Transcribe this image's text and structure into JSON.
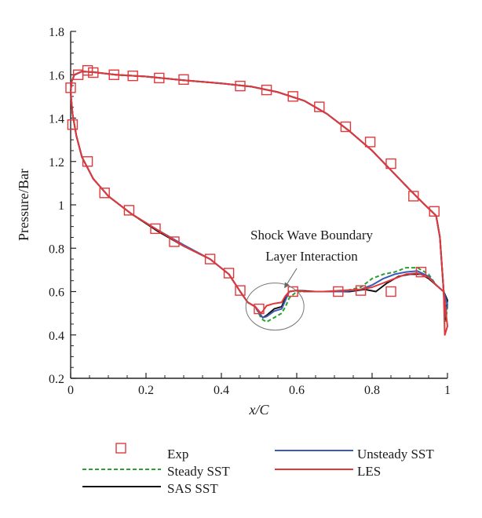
{
  "chart_data": {
    "type": "line",
    "title": "",
    "xlabel": "x/C",
    "ylabel": "Pressure/Bar",
    "xlim": [
      0,
      1
    ],
    "ylim": [
      0.2,
      1.8
    ],
    "xticks": [
      0,
      0.2,
      0.4,
      0.6,
      0.8,
      1
    ],
    "xtick_labels": [
      "0",
      "0.2",
      "0.4",
      "0.6",
      "0.8",
      "1"
    ],
    "yticks": [
      0.2,
      0.4,
      0.6,
      0.8,
      1.0,
      1.2,
      1.4,
      1.6,
      1.8
    ],
    "ytick_labels": [
      "0.2",
      "0.4",
      "0.6",
      "0.8",
      "1",
      "1.2",
      "1.4",
      "1.6",
      "1.8"
    ],
    "grid": false,
    "legend_position": "bottom",
    "annotation": {
      "line1": "Shock Wave Boundary",
      "line2": "Layer Interaction",
      "target": [
        0.54,
        0.52
      ]
    },
    "exp": {
      "name": "Exp",
      "color": "#e0383b",
      "marker": "square",
      "upper": [
        [
          0.0,
          1.54
        ],
        [
          0.02,
          1.6
        ],
        [
          0.045,
          1.62
        ],
        [
          0.06,
          1.61
        ],
        [
          0.115,
          1.6
        ],
        [
          0.165,
          1.595
        ],
        [
          0.235,
          1.585
        ],
        [
          0.3,
          1.578
        ],
        [
          0.45,
          1.548
        ],
        [
          0.52,
          1.53
        ],
        [
          0.59,
          1.5
        ],
        [
          0.66,
          1.452
        ],
        [
          0.73,
          1.36
        ],
        [
          0.795,
          1.29
        ],
        [
          0.85,
          1.19
        ],
        [
          0.91,
          1.04
        ],
        [
          0.965,
          0.97
        ]
      ],
      "lower": [
        [
          0.005,
          1.37
        ],
        [
          0.045,
          1.2
        ],
        [
          0.09,
          1.055
        ],
        [
          0.155,
          0.975
        ],
        [
          0.225,
          0.89
        ],
        [
          0.275,
          0.83
        ],
        [
          0.37,
          0.75
        ],
        [
          0.42,
          0.685
        ],
        [
          0.45,
          0.605
        ],
        [
          0.5,
          0.52
        ],
        [
          0.59,
          0.6
        ],
        [
          0.71,
          0.6
        ],
        [
          0.77,
          0.605
        ],
        [
          0.85,
          0.6
        ],
        [
          0.93,
          0.69
        ]
      ]
    },
    "series": [
      {
        "name": "Steady SST",
        "color": "#2ca02c",
        "dash": "5,3",
        "points": [
          [
            0.0,
            1.52
          ],
          [
            0.003,
            1.57
          ],
          [
            0.01,
            1.6
          ],
          [
            0.03,
            1.615
          ],
          [
            0.06,
            1.612
          ],
          [
            0.12,
            1.6
          ],
          [
            0.2,
            1.592
          ],
          [
            0.3,
            1.575
          ],
          [
            0.4,
            1.56
          ],
          [
            0.48,
            1.545
          ],
          [
            0.55,
            1.52
          ],
          [
            0.62,
            1.48
          ],
          [
            0.68,
            1.42
          ],
          [
            0.74,
            1.34
          ],
          [
            0.8,
            1.25
          ],
          [
            0.85,
            1.16
          ],
          [
            0.9,
            1.07
          ],
          [
            0.94,
            1.0
          ],
          [
            0.97,
            0.95
          ],
          [
            0.98,
            0.85
          ],
          [
            0.99,
            0.6
          ],
          [
            0.995,
            0.46
          ],
          [
            1.0,
            0.53
          ],
          [
            0.99,
            0.6
          ],
          [
            0.97,
            0.63
          ],
          [
            0.95,
            0.68
          ],
          [
            0.92,
            0.71
          ],
          [
            0.89,
            0.71
          ],
          [
            0.86,
            0.69
          ],
          [
            0.83,
            0.68
          ],
          [
            0.8,
            0.66
          ],
          [
            0.77,
            0.62
          ],
          [
            0.72,
            0.6
          ],
          [
            0.67,
            0.6
          ],
          [
            0.62,
            0.6
          ],
          [
            0.6,
            0.6
          ],
          [
            0.58,
            0.57
          ],
          [
            0.57,
            0.53
          ],
          [
            0.56,
            0.5
          ],
          [
            0.54,
            0.48
          ],
          [
            0.52,
            0.46
          ],
          [
            0.51,
            0.47
          ],
          [
            0.505,
            0.48
          ],
          [
            0.49,
            0.53
          ],
          [
            0.47,
            0.55
          ],
          [
            0.45,
            0.6
          ],
          [
            0.42,
            0.68
          ],
          [
            0.37,
            0.75
          ],
          [
            0.3,
            0.81
          ],
          [
            0.23,
            0.88
          ],
          [
            0.16,
            0.96
          ],
          [
            0.1,
            1.04
          ],
          [
            0.06,
            1.12
          ],
          [
            0.03,
            1.22
          ],
          [
            0.015,
            1.32
          ],
          [
            0.005,
            1.42
          ],
          [
            0.0,
            1.52
          ]
        ]
      },
      {
        "name": "SAS SST",
        "color": "#111111",
        "dash": "",
        "points": [
          [
            0.0,
            1.52
          ],
          [
            0.003,
            1.57
          ],
          [
            0.01,
            1.6
          ],
          [
            0.03,
            1.615
          ],
          [
            0.06,
            1.612
          ],
          [
            0.12,
            1.6
          ],
          [
            0.2,
            1.592
          ],
          [
            0.3,
            1.575
          ],
          [
            0.4,
            1.56
          ],
          [
            0.48,
            1.545
          ],
          [
            0.55,
            1.52
          ],
          [
            0.62,
            1.48
          ],
          [
            0.68,
            1.42
          ],
          [
            0.74,
            1.34
          ],
          [
            0.8,
            1.25
          ],
          [
            0.85,
            1.16
          ],
          [
            0.9,
            1.07
          ],
          [
            0.94,
            1.0
          ],
          [
            0.97,
            0.95
          ],
          [
            0.98,
            0.85
          ],
          [
            0.99,
            0.6
          ],
          [
            0.993,
            0.47
          ],
          [
            1.0,
            0.56
          ],
          [
            0.99,
            0.6
          ],
          [
            0.97,
            0.63
          ],
          [
            0.95,
            0.66
          ],
          [
            0.93,
            0.68
          ],
          [
            0.9,
            0.68
          ],
          [
            0.87,
            0.67
          ],
          [
            0.84,
            0.64
          ],
          [
            0.81,
            0.6
          ],
          [
            0.78,
            0.61
          ],
          [
            0.74,
            0.6
          ],
          [
            0.7,
            0.6
          ],
          [
            0.65,
            0.6
          ],
          [
            0.6,
            0.605
          ],
          [
            0.58,
            0.6
          ],
          [
            0.57,
            0.57
          ],
          [
            0.56,
            0.53
          ],
          [
            0.54,
            0.52
          ],
          [
            0.52,
            0.49
          ],
          [
            0.51,
            0.48
          ],
          [
            0.505,
            0.49
          ],
          [
            0.49,
            0.53
          ],
          [
            0.47,
            0.55
          ],
          [
            0.45,
            0.6
          ],
          [
            0.42,
            0.68
          ],
          [
            0.37,
            0.75
          ],
          [
            0.3,
            0.81
          ],
          [
            0.23,
            0.88
          ],
          [
            0.16,
            0.96
          ],
          [
            0.1,
            1.04
          ],
          [
            0.06,
            1.12
          ],
          [
            0.03,
            1.22
          ],
          [
            0.015,
            1.32
          ],
          [
            0.005,
            1.42
          ],
          [
            0.0,
            1.52
          ]
        ]
      },
      {
        "name": "Unsteady SST",
        "color": "#3b5bb8",
        "dash": "",
        "points": [
          [
            0.0,
            1.52
          ],
          [
            0.003,
            1.57
          ],
          [
            0.01,
            1.6
          ],
          [
            0.03,
            1.615
          ],
          [
            0.06,
            1.612
          ],
          [
            0.12,
            1.6
          ],
          [
            0.2,
            1.592
          ],
          [
            0.3,
            1.575
          ],
          [
            0.4,
            1.56
          ],
          [
            0.48,
            1.545
          ],
          [
            0.55,
            1.52
          ],
          [
            0.62,
            1.48
          ],
          [
            0.68,
            1.42
          ],
          [
            0.74,
            1.34
          ],
          [
            0.8,
            1.25
          ],
          [
            0.85,
            1.16
          ],
          [
            0.9,
            1.07
          ],
          [
            0.94,
            1.0
          ],
          [
            0.97,
            0.95
          ],
          [
            0.98,
            0.85
          ],
          [
            0.99,
            0.6
          ],
          [
            0.993,
            0.48
          ],
          [
            1.0,
            0.54
          ],
          [
            0.99,
            0.6
          ],
          [
            0.97,
            0.63
          ],
          [
            0.95,
            0.67
          ],
          [
            0.92,
            0.695
          ],
          [
            0.89,
            0.69
          ],
          [
            0.86,
            0.68
          ],
          [
            0.83,
            0.66
          ],
          [
            0.8,
            0.63
          ],
          [
            0.77,
            0.61
          ],
          [
            0.72,
            0.6
          ],
          [
            0.67,
            0.6
          ],
          [
            0.62,
            0.6
          ],
          [
            0.6,
            0.605
          ],
          [
            0.58,
            0.6
          ],
          [
            0.57,
            0.56
          ],
          [
            0.56,
            0.52
          ],
          [
            0.54,
            0.51
          ],
          [
            0.52,
            0.485
          ],
          [
            0.51,
            0.48
          ],
          [
            0.505,
            0.49
          ],
          [
            0.49,
            0.53
          ],
          [
            0.47,
            0.55
          ],
          [
            0.45,
            0.6
          ],
          [
            0.42,
            0.68
          ],
          [
            0.37,
            0.75
          ],
          [
            0.3,
            0.815
          ],
          [
            0.23,
            0.885
          ],
          [
            0.16,
            0.96
          ],
          [
            0.1,
            1.04
          ],
          [
            0.06,
            1.12
          ],
          [
            0.03,
            1.22
          ],
          [
            0.015,
            1.32
          ],
          [
            0.005,
            1.42
          ],
          [
            0.0,
            1.52
          ]
        ]
      },
      {
        "name": "LES",
        "color": "#e0383b",
        "dash": "",
        "points": [
          [
            0.0,
            1.52
          ],
          [
            0.003,
            1.57
          ],
          [
            0.01,
            1.6
          ],
          [
            0.03,
            1.615
          ],
          [
            0.06,
            1.612
          ],
          [
            0.12,
            1.6
          ],
          [
            0.2,
            1.592
          ],
          [
            0.3,
            1.575
          ],
          [
            0.4,
            1.56
          ],
          [
            0.48,
            1.545
          ],
          [
            0.55,
            1.52
          ],
          [
            0.62,
            1.48
          ],
          [
            0.68,
            1.42
          ],
          [
            0.74,
            1.34
          ],
          [
            0.8,
            1.25
          ],
          [
            0.85,
            1.16
          ],
          [
            0.9,
            1.07
          ],
          [
            0.94,
            1.0
          ],
          [
            0.97,
            0.95
          ],
          [
            0.98,
            0.85
          ],
          [
            0.99,
            0.6
          ],
          [
            0.993,
            0.4
          ],
          [
            1.0,
            0.44
          ],
          [
            0.99,
            0.6
          ],
          [
            0.97,
            0.63
          ],
          [
            0.95,
            0.665
          ],
          [
            0.92,
            0.685
          ],
          [
            0.89,
            0.68
          ],
          [
            0.86,
            0.66
          ],
          [
            0.83,
            0.64
          ],
          [
            0.8,
            0.62
          ],
          [
            0.77,
            0.61
          ],
          [
            0.72,
            0.605
          ],
          [
            0.67,
            0.6
          ],
          [
            0.62,
            0.6
          ],
          [
            0.6,
            0.605
          ],
          [
            0.58,
            0.6
          ],
          [
            0.57,
            0.58
          ],
          [
            0.56,
            0.55
          ],
          [
            0.54,
            0.545
          ],
          [
            0.52,
            0.535
          ],
          [
            0.51,
            0.51
          ],
          [
            0.505,
            0.5
          ],
          [
            0.49,
            0.53
          ],
          [
            0.47,
            0.55
          ],
          [
            0.45,
            0.6
          ],
          [
            0.42,
            0.68
          ],
          [
            0.37,
            0.75
          ],
          [
            0.3,
            0.81
          ],
          [
            0.23,
            0.885
          ],
          [
            0.16,
            0.96
          ],
          [
            0.1,
            1.04
          ],
          [
            0.06,
            1.12
          ],
          [
            0.03,
            1.22
          ],
          [
            0.015,
            1.32
          ],
          [
            0.005,
            1.42
          ],
          [
            0.0,
            1.52
          ]
        ]
      }
    ]
  }
}
